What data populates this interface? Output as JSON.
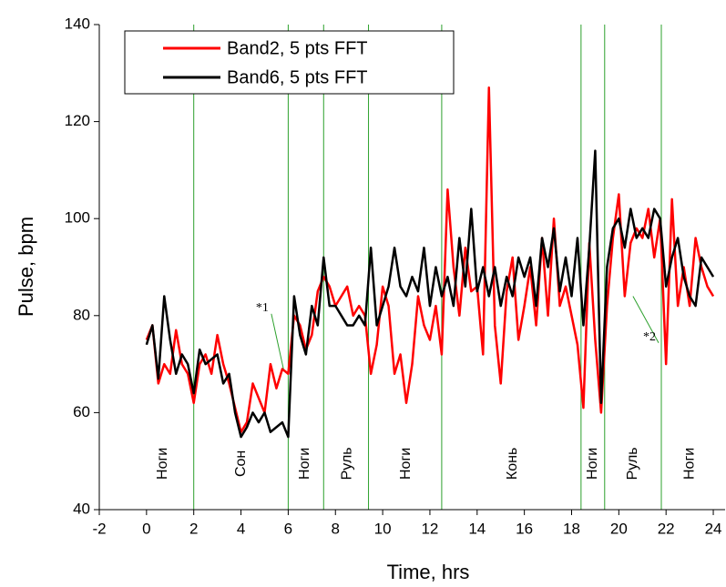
{
  "chart_data": {
    "type": "line",
    "x_label": "Time, hrs",
    "y_label": "Pulse, bpm",
    "xlim": [
      -2,
      24.5
    ],
    "ylim": [
      40,
      140
    ],
    "xticks": [
      -2,
      0,
      2,
      4,
      6,
      8,
      10,
      12,
      14,
      16,
      18,
      20,
      22,
      24
    ],
    "yticks": [
      40,
      60,
      80,
      100,
      120,
      140
    ],
    "legend_position": "upper-left",
    "x": [
      0,
      0.25,
      0.5,
      0.75,
      1,
      1.25,
      1.5,
      1.75,
      2,
      2.25,
      2.5,
      2.75,
      3,
      3.25,
      3.5,
      3.75,
      4,
      4.25,
      4.5,
      4.75,
      5,
      5.25,
      5.5,
      5.75,
      6,
      6.25,
      6.5,
      6.75,
      7,
      7.25,
      7.5,
      7.75,
      8,
      8.25,
      8.5,
      8.75,
      9,
      9.25,
      9.5,
      9.75,
      10,
      10.25,
      10.5,
      10.75,
      11,
      11.25,
      11.5,
      11.75,
      12,
      12.25,
      12.5,
      12.75,
      13,
      13.25,
      13.5,
      13.75,
      14,
      14.25,
      14.5,
      14.75,
      15,
      15.25,
      15.5,
      15.75,
      16,
      16.25,
      16.5,
      16.75,
      17,
      17.25,
      17.5,
      17.75,
      18,
      18.25,
      18.5,
      18.75,
      19,
      19.25,
      19.5,
      19.75,
      20,
      20.25,
      20.5,
      20.75,
      21,
      21.25,
      21.5,
      21.75,
      22,
      22.25,
      22.5,
      22.75,
      23,
      23.25,
      23.5,
      23.75,
      24
    ],
    "series": [
      {
        "name": "Band2, 5 pts FFT",
        "color": "#ff0000",
        "values": [
          75,
          78,
          66,
          70,
          68,
          77,
          70,
          68,
          62,
          70,
          72,
          68,
          76,
          70,
          66,
          61,
          56,
          58,
          66,
          63,
          60,
          70,
          65,
          69,
          68,
          80,
          78,
          73,
          76,
          85,
          88,
          86,
          82,
          84,
          86,
          80,
          82,
          80,
          68,
          74,
          86,
          82,
          68,
          72,
          62,
          70,
          84,
          78,
          75,
          82,
          72,
          106,
          90,
          80,
          94,
          85,
          86,
          72,
          127,
          78,
          66,
          85,
          92,
          75,
          82,
          90,
          78,
          96,
          80,
          100,
          82,
          86,
          80,
          74,
          61,
          95,
          75,
          60,
          82,
          96,
          105,
          84,
          95,
          98,
          96,
          102,
          92,
          100,
          70,
          104,
          82,
          90,
          82,
          96,
          90,
          86,
          84
        ]
      },
      {
        "name": "Band6, 5 pts FFT",
        "color": "#000000",
        "values": [
          74,
          78,
          67,
          84,
          75,
          68,
          72,
          70,
          64,
          73,
          70,
          71,
          72,
          66,
          68,
          60,
          55,
          57,
          60,
          58,
          60,
          56,
          57,
          58,
          55,
          84,
          76,
          72,
          82,
          78,
          92,
          82,
          82,
          80,
          78,
          78,
          80,
          78,
          94,
          78,
          82,
          86,
          94,
          86,
          84,
          88,
          85,
          94,
          82,
          90,
          84,
          88,
          82,
          96,
          86,
          102,
          85,
          90,
          84,
          90,
          82,
          88,
          84,
          92,
          88,
          92,
          82,
          96,
          90,
          98,
          85,
          92,
          84,
          96,
          78,
          94,
          114,
          62,
          90,
          98,
          100,
          94,
          102,
          96,
          98,
          96,
          102,
          100,
          86,
          92,
          96,
          88,
          84,
          82,
          92,
          90,
          88
        ]
      }
    ],
    "vlines": {
      "color": "#2ca02c",
      "values": [
        2,
        6,
        7.5,
        9.4,
        12.5,
        18.4,
        19.4,
        21.8
      ]
    },
    "regions": [
      {
        "label": "Ноги",
        "x": 0.7
      },
      {
        "label": "Сон",
        "x": 4
      },
      {
        "label": "Ноги",
        "x": 6.7
      },
      {
        "label": "Руль",
        "x": 8.5
      },
      {
        "label": "Ноги",
        "x": 11
      },
      {
        "label": "Конь",
        "x": 15.5
      },
      {
        "label": "Ноги",
        "x": 18.9
      },
      {
        "label": "Руль",
        "x": 20.6
      },
      {
        "label": "Ноги",
        "x": 23
      }
    ],
    "annotations": [
      {
        "text": "*1",
        "x": 4.9,
        "y": 81.5,
        "line_to": [
          5.8,
          69
        ]
      },
      {
        "text": "*2",
        "x": 21.3,
        "y": 75.5,
        "line_to": [
          20.6,
          84
        ]
      }
    ]
  }
}
